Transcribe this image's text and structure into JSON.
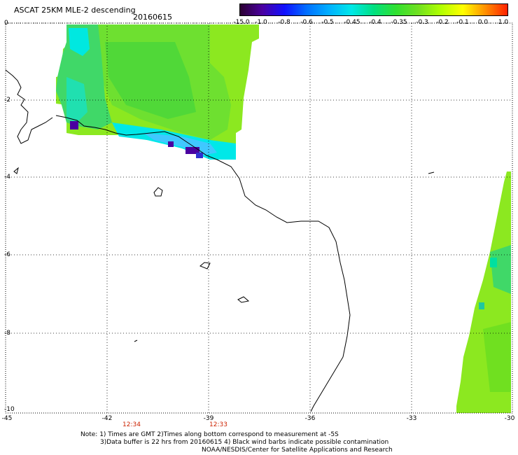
{
  "header": {
    "title": "ASCAT 25KM MLE-2 descending",
    "date": "20160615"
  },
  "colorbar": {
    "labels": [
      "-15.0",
      "-1.0",
      "-0.8",
      "-0.6",
      "-0.5",
      "-0.45",
      "-0.4",
      "-0.35",
      "-0.3",
      "-0.2",
      "-0.1",
      "0.0",
      "1.0"
    ],
    "colors": [
      "#2a0030",
      "#4a00a0",
      "#1010ff",
      "#0070ff",
      "#00b0ff",
      "#00e8e8",
      "#00e080",
      "#30e030",
      "#70e020",
      "#b0ff00",
      "#ffff00",
      "#ff9000",
      "#ff2000"
    ]
  },
  "axes": {
    "y_labels": [
      "0",
      "-2",
      "-4",
      "-6",
      "-8",
      "-10"
    ],
    "x_labels": [
      "-45",
      "-42",
      "-39",
      "-36",
      "-33",
      "-30"
    ]
  },
  "times": [
    "12:34",
    "12:33"
  ],
  "notes": {
    "line1": "Note: 1) Times are GMT 2)Times along bottom correspond to measurement at -5S",
    "line2": "3)Data buffer is 22 hrs from 20160615 4) Black wind barbs indicate possible contamination",
    "line3": "NOAA/NESDIS/Center for Satellite Applications and Research"
  }
}
